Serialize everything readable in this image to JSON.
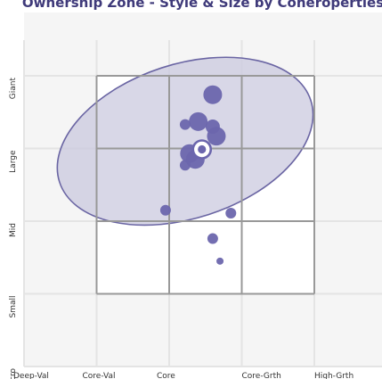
{
  "chart_data": {
    "type": "scatter",
    "title": "Ownership Zone - Style & Size by Coneroperties",
    "x_ticks": [
      "Deep-Val",
      "Core-Val",
      "Core",
      "Core-Grth",
      "High-Grth"
    ],
    "y_ticks": [
      "Micro",
      "Small",
      "Mid",
      "Large",
      "Giant"
    ],
    "xlim": [
      0,
      4
    ],
    "ylim": [
      0,
      4
    ],
    "grid": true,
    "style_box": {
      "x": [
        1,
        4
      ],
      "y": [
        1,
        4
      ]
    },
    "ownership_zone": {
      "center": [
        2.22,
        3.1
      ],
      "rx": 1.82,
      "ry": 1.06,
      "rotation_deg": -18
    },
    "holdings": [
      {
        "x": 2.6,
        "y": 3.74,
        "size": 3
      },
      {
        "x": 2.4,
        "y": 3.37,
        "size": 3
      },
      {
        "x": 2.22,
        "y": 3.33,
        "size": 1
      },
      {
        "x": 2.6,
        "y": 3.3,
        "size": 2
      },
      {
        "x": 2.65,
        "y": 3.17,
        "size": 3
      },
      {
        "x": 2.28,
        "y": 2.93,
        "size": 3
      },
      {
        "x": 2.36,
        "y": 2.85,
        "size": 3
      },
      {
        "x": 2.22,
        "y": 2.77,
        "size": 1
      },
      {
        "x": 1.95,
        "y": 2.15,
        "size": 1
      },
      {
        "x": 2.85,
        "y": 2.11,
        "size": 1
      },
      {
        "x": 2.6,
        "y": 1.76,
        "size": 1
      },
      {
        "x": 2.7,
        "y": 1.45,
        "size": 0
      }
    ],
    "centroid": {
      "x": 2.5,
      "y": 3.0
    },
    "colors": {
      "zone_fill": "#c9c7de",
      "zone_stroke": "#6a65a3",
      "holding": "#6b66ad",
      "box_stroke": "#999999",
      "grid": "#e4e4e4",
      "plot_bg": "#f5f5f5",
      "title": "#3f3a7a"
    }
  }
}
